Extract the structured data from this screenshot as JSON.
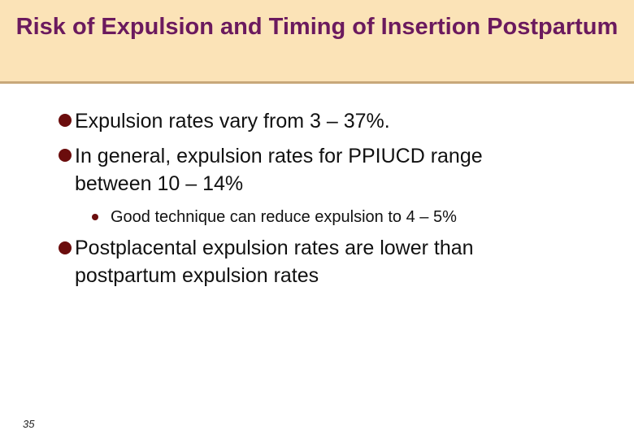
{
  "header": {
    "title": "Risk of Expulsion and Timing of Insertion Postpartum"
  },
  "bullets": [
    {
      "text": "Expulsion rates vary from 3 – 37%."
    },
    {
      "text": "In general, expulsion rates for PPIUCD range between 10 – 14%",
      "sub": [
        "Good technique can reduce expulsion to 4 – 5%"
      ]
    },
    {
      "text": "Postplacental expulsion rates are lower than postpartum expulsion rates"
    }
  ],
  "footer": {
    "page_number": "35"
  }
}
